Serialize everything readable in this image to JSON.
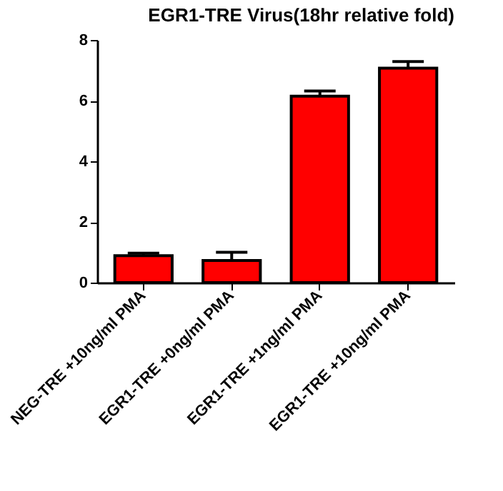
{
  "chart_data": {
    "type": "bar",
    "title": "EGR1-TRE Virus(18hr relative fold)",
    "categories": [
      "NEG-TRE +10ng/ml PMA",
      "EGR1-TRE +0ng/ml PMA",
      "EGR1-TRE +1ng/ml PMA",
      "EGR1-TRE +10ng/ml PMA"
    ],
    "values": [
      0.89,
      0.73,
      6.15,
      7.07
    ],
    "errors": [
      [
        0.89,
        0.97
      ],
      [
        0.73,
        1.0
      ],
      [
        6.15,
        6.32
      ],
      [
        7.07,
        7.29
      ]
    ],
    "color": "#ff0000",
    "ylim": [
      0,
      8
    ],
    "yticks": [
      0,
      2,
      4,
      6,
      8
    ],
    "grid": false
  }
}
